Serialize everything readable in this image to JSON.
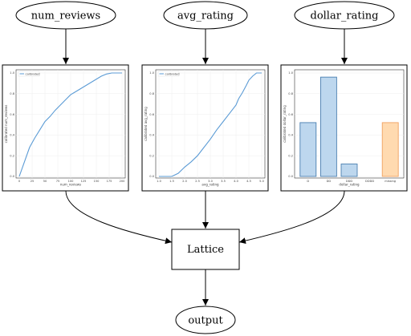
{
  "nodes": {
    "input_1": "num_reviews",
    "input_2": "avg_rating",
    "input_3": "dollar_rating",
    "lattice": "Lattice",
    "output": "output"
  },
  "chart_data": [
    {
      "type": "line",
      "legend": "calibrated",
      "legend_position": "top-left",
      "xlabel": "num_reviews",
      "ylabel": "calibrated num_reviews",
      "xlim": [
        0,
        200
      ],
      "ylim": [
        0,
        1
      ],
      "xticks": [
        "0",
        "25",
        "50",
        "75",
        "100",
        "125",
        "150",
        "175",
        "200"
      ],
      "yticks": [
        "0.0",
        "0.2",
        "0.4",
        "0.6",
        "0.8",
        "1.0"
      ],
      "grid": true,
      "color": "#5b9bd5",
      "x": [
        0,
        10,
        20,
        30,
        40,
        50,
        60,
        70,
        80,
        90,
        100,
        110,
        120,
        130,
        140,
        150,
        160,
        170,
        180,
        190,
        200
      ],
      "y": [
        0.0,
        0.14,
        0.28,
        0.37,
        0.45,
        0.53,
        0.58,
        0.64,
        0.69,
        0.74,
        0.79,
        0.82,
        0.85,
        0.88,
        0.91,
        0.94,
        0.97,
        0.99,
        1.0,
        1.0,
        1.0
      ]
    },
    {
      "type": "line",
      "legend": "calibrated",
      "legend_position": "top-left",
      "xlabel": "avg_rating",
      "ylabel": "calibrated avg_rating",
      "xlim": [
        1,
        5
      ],
      "ylim": [
        0,
        1
      ],
      "xticks": [
        "1.0",
        "1.5",
        "2.0",
        "2.5",
        "3.0",
        "3.5",
        "4.0",
        "4.5",
        "5.0"
      ],
      "yticks": [
        "0.0",
        "0.2",
        "0.4",
        "0.6",
        "0.8",
        "1.0"
      ],
      "grid": true,
      "color": "#5b9bd5",
      "x": [
        1.0,
        1.25,
        1.5,
        1.75,
        2.0,
        2.25,
        2.5,
        2.75,
        3.0,
        3.25,
        3.5,
        3.75,
        4.0,
        4.1,
        4.25,
        4.4,
        4.5,
        4.65,
        4.8,
        5.0
      ],
      "y": [
        0.0,
        0.0,
        0.0,
        0.03,
        0.09,
        0.14,
        0.2,
        0.28,
        0.36,
        0.45,
        0.53,
        0.61,
        0.69,
        0.75,
        0.81,
        0.88,
        0.93,
        0.97,
        1.0,
        1.0
      ]
    },
    {
      "type": "bar",
      "xlabel": "dollar_rating",
      "ylabel": "calibrated dollar_rating",
      "ylim": [
        0,
        1.0
      ],
      "yticks": [
        "0.0",
        "0.2",
        "0.4",
        "0.6",
        "0.8",
        "1.0"
      ],
      "grid": true,
      "categories": [
        "D",
        "DD",
        "DDD",
        "DDDD",
        "missing"
      ],
      "values": [
        0.52,
        0.96,
        0.12,
        0.0,
        0.52
      ],
      "colors": [
        "#bdd7ee",
        "#bdd7ee",
        "#bdd7ee",
        "#bdd7ee",
        "#ffdab0"
      ],
      "edge_colors": [
        "#4a7fb0",
        "#4a7fb0",
        "#4a7fb0",
        "#4a7fb0",
        "#f0a060"
      ]
    }
  ]
}
